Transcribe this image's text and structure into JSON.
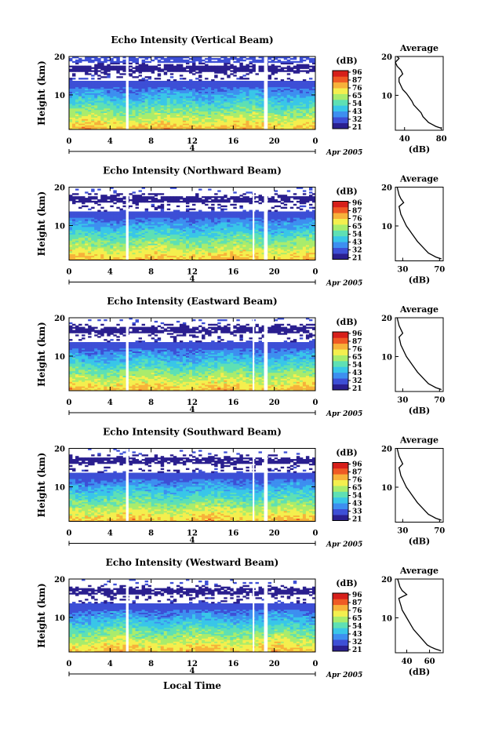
{
  "footer": {
    "xlabel": "Local Time"
  },
  "colors": {
    "colormap": [
      "#2a1f8f",
      "#3d4fd6",
      "#3d8ff0",
      "#39c6e8",
      "#5ee0b4",
      "#a9ec6c",
      "#f4ef4e",
      "#f7b23a",
      "#ef5a24",
      "#d61f1a"
    ]
  },
  "chart_data": [
    {
      "type": "heatmap",
      "title": "Echo Intensity (Vertical Beam)",
      "ylabel": "Height (km)",
      "y_ticks": [
        "20",
        "10"
      ],
      "ylim": [
        1,
        20
      ],
      "x_ticks": [
        "0",
        "4",
        "8",
        "12",
        "16",
        "20",
        "0"
      ],
      "xlim": [
        0,
        24
      ],
      "date_label": "4",
      "month_label": "Apr 2005",
      "colorbar": {
        "label": "(dB)",
        "ticks": [
          "96",
          "87",
          "76",
          "65",
          "54",
          "43",
          "32",
          "21"
        ]
      },
      "data_gaps": [
        [
          5.55,
          5.8
        ],
        [
          19.0,
          19.35
        ]
      ],
      "profile": {
        "title": "Average",
        "xlabel": "(dB)",
        "x_ticks": [
          "40",
          "80"
        ],
        "xlim": [
          30,
          82
        ],
        "y_ticks": [
          "20",
          "10"
        ],
        "ylim": [
          1,
          20
        ],
        "x": [
          80,
          74,
          70,
          66,
          64,
          60,
          58,
          54,
          50,
          48,
          45,
          42,
          38,
          36,
          34,
          34,
          38,
          36,
          32,
          30,
          34,
          32
        ],
        "y": [
          1.5,
          2,
          2.5,
          3,
          3.5,
          4.5,
          5.5,
          6.5,
          7.5,
          8.5,
          9.5,
          10.5,
          11.5,
          12.5,
          13.5,
          14.5,
          15.5,
          16.5,
          17.5,
          18.5,
          19.5,
          20
        ]
      }
    },
    {
      "type": "heatmap",
      "title": "Echo Intensity (Northward Beam)",
      "ylabel": "Height (km)",
      "y_ticks": [
        "20",
        "10"
      ],
      "ylim": [
        1,
        20
      ],
      "x_ticks": [
        "0",
        "4",
        "8",
        "12",
        "16",
        "20",
        "0"
      ],
      "xlim": [
        0,
        24
      ],
      "date_label": "4",
      "month_label": "Apr 2005",
      "colorbar": {
        "label": "(dB)",
        "ticks": [
          "96",
          "87",
          "76",
          "65",
          "54",
          "43",
          "32",
          "21"
        ]
      },
      "data_gaps": [
        [
          5.55,
          5.8
        ],
        [
          17.9,
          18.05
        ],
        [
          19.0,
          19.35
        ]
      ],
      "profile": {
        "title": "Average",
        "xlabel": "(dB)",
        "x_ticks": [
          "30",
          "70"
        ],
        "xlim": [
          22,
          74
        ],
        "y_ticks": [
          "20",
          "10"
        ],
        "ylim": [
          1,
          20
        ],
        "x": [
          72,
          66,
          62,
          58,
          54,
          50,
          46,
          43,
          40,
          37,
          34,
          32,
          30,
          28,
          27,
          26,
          31,
          28,
          26,
          25,
          24
        ],
        "y": [
          1.5,
          2,
          2.5,
          3,
          4,
          5,
          6,
          7,
          8,
          9,
          10,
          11,
          12,
          13,
          14,
          15,
          16,
          17,
          18,
          19,
          20
        ]
      }
    },
    {
      "type": "heatmap",
      "title": "Echo Intensity (Eastward Beam)",
      "ylabel": "Height (km)",
      "y_ticks": [
        "20",
        "10"
      ],
      "ylim": [
        1,
        20
      ],
      "x_ticks": [
        "0",
        "4",
        "8",
        "12",
        "16",
        "20",
        "0"
      ],
      "xlim": [
        0,
        24
      ],
      "date_label": "4",
      "month_label": "Apr 2005",
      "colorbar": {
        "label": "(dB)",
        "ticks": [
          "96",
          "87",
          "76",
          "65",
          "54",
          "43",
          "32",
          "21"
        ]
      },
      "data_gaps": [
        [
          5.55,
          5.8
        ],
        [
          17.9,
          18.05
        ],
        [
          19.0,
          19.35
        ]
      ],
      "profile": {
        "title": "Average",
        "xlabel": "(dB)",
        "x_ticks": [
          "30",
          "70"
        ],
        "xlim": [
          22,
          74
        ],
        "y_ticks": [
          "20",
          "10"
        ],
        "ylim": [
          1,
          20
        ],
        "x": [
          72,
          66,
          62,
          58,
          54,
          50,
          46,
          43,
          40,
          37,
          34,
          32,
          30,
          28,
          27,
          26,
          30,
          28,
          26,
          25,
          24
        ],
        "y": [
          1.5,
          2,
          2.5,
          3,
          4,
          5,
          6,
          7,
          8,
          9,
          10,
          11,
          12,
          13,
          14,
          15,
          16,
          17,
          18,
          19,
          20
        ]
      }
    },
    {
      "type": "heatmap",
      "title": "Echo Intensity (Southward Beam)",
      "ylabel": "Height (km)",
      "y_ticks": [
        "20",
        "10"
      ],
      "ylim": [
        1,
        20
      ],
      "x_ticks": [
        "0",
        "4",
        "8",
        "12",
        "16",
        "20",
        "0"
      ],
      "xlim": [
        0,
        24
      ],
      "date_label": "4",
      "month_label": "Apr 2005",
      "colorbar": {
        "label": "(dB)",
        "ticks": [
          "96",
          "87",
          "76",
          "65",
          "54",
          "43",
          "33",
          "21"
        ]
      },
      "data_gaps": [
        [
          5.55,
          5.8
        ],
        [
          17.9,
          18.05
        ],
        [
          19.0,
          19.35
        ]
      ],
      "profile": {
        "title": "Average",
        "xlabel": "(dB)",
        "x_ticks": [
          "30",
          "70"
        ],
        "xlim": [
          22,
          74
        ],
        "y_ticks": [
          "20",
          "10"
        ],
        "ylim": [
          1,
          20
        ],
        "x": [
          72,
          66,
          62,
          58,
          54,
          50,
          46,
          43,
          40,
          37,
          34,
          32,
          30,
          28,
          27,
          26,
          30,
          28,
          26,
          25,
          24
        ],
        "y": [
          1.5,
          2,
          2.5,
          3,
          4,
          5,
          6,
          7,
          8,
          9,
          10,
          11,
          12,
          13,
          14,
          15,
          16,
          17,
          18,
          19,
          20
        ]
      }
    },
    {
      "type": "heatmap",
      "title": "Echo Intensity (Westward Beam)",
      "ylabel": "Height (km)",
      "y_ticks": [
        "20",
        "10"
      ],
      "ylim": [
        1,
        20
      ],
      "x_ticks": [
        "0",
        "4",
        "8",
        "12",
        "16",
        "20",
        "0"
      ],
      "xlim": [
        0,
        24
      ],
      "date_label": "4",
      "month_label": "Apr 2005",
      "colorbar": {
        "label": "(dB)",
        "ticks": [
          "96",
          "87",
          "76",
          "65",
          "54",
          "43",
          "32",
          "21"
        ]
      },
      "data_gaps": [
        [
          5.55,
          5.8
        ],
        [
          17.9,
          18.05
        ],
        [
          19.0,
          19.35
        ]
      ],
      "profile": {
        "title": "Average",
        "xlabel": "(dB)",
        "x_ticks": [
          "40",
          "60"
        ],
        "xlim": [
          30,
          72
        ],
        "y_ticks": [
          "20",
          "10"
        ],
        "ylim": [
          1,
          20
        ],
        "x": [
          70,
          65,
          61,
          58,
          55,
          52,
          49,
          46,
          44,
          42,
          40,
          38,
          36,
          35,
          34,
          33,
          40,
          36,
          34,
          33,
          32
        ],
        "y": [
          1.5,
          2,
          2.5,
          3,
          4,
          5,
          6,
          7,
          8,
          9,
          10,
          11,
          12,
          13,
          14,
          15,
          16,
          17,
          18,
          19,
          20
        ]
      }
    }
  ]
}
